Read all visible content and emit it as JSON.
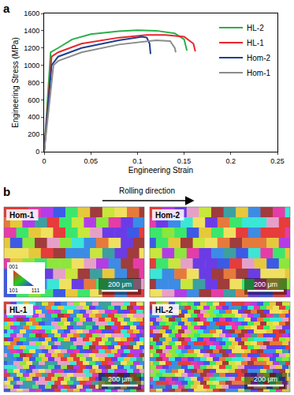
{
  "chart_data": {
    "type": "line",
    "xlabel": "Engineering Strain",
    "ylabel": "Engineering Stress (MPa)",
    "xlim": [
      0,
      0.25
    ],
    "xticks": [
      0,
      0.05,
      0.1,
      0.15,
      0.2,
      0.25
    ],
    "ylim": [
      0,
      1600
    ],
    "yticks": [
      0,
      200,
      400,
      600,
      800,
      1000,
      1200,
      1400,
      1600
    ],
    "grid": false,
    "legend": "upper right",
    "series": [
      {
        "name": "HL-2",
        "color": "#2ab04a",
        "x": [
          0,
          0.007,
          0.015,
          0.03,
          0.05,
          0.08,
          0.1,
          0.12,
          0.14,
          0.15,
          0.153
        ],
        "values": [
          0,
          1150,
          1200,
          1300,
          1360,
          1395,
          1405,
          1400,
          1370,
          1300,
          1170
        ]
      },
      {
        "name": "HL-1",
        "color": "#e8262b",
        "x": [
          0,
          0.008,
          0.015,
          0.04,
          0.08,
          0.11,
          0.13,
          0.15,
          0.16,
          0.162
        ],
        "values": [
          0,
          1100,
          1150,
          1250,
          1320,
          1350,
          1350,
          1330,
          1250,
          1160
        ]
      },
      {
        "name": "Hom-2",
        "color": "#1f3f8f",
        "x": [
          0,
          0.008,
          0.015,
          0.04,
          0.08,
          0.105,
          0.11,
          0.113,
          0.114
        ],
        "values": [
          0,
          1000,
          1100,
          1200,
          1290,
          1330,
          1320,
          1250,
          1130
        ]
      },
      {
        "name": "Hom-1",
        "color": "#8c8c8c",
        "x": [
          0,
          0.01,
          0.015,
          0.04,
          0.08,
          0.12,
          0.135,
          0.14,
          0.141
        ],
        "values": [
          0,
          1000,
          1050,
          1150,
          1240,
          1290,
          1280,
          1200,
          1150
        ]
      }
    ]
  },
  "figure": {
    "panel_letters": [
      "a",
      "b"
    ],
    "arrow_label": "Rolling direction",
    "ipf_key": [
      "001",
      "101",
      "111"
    ],
    "maps": [
      {
        "label": "Hom-1",
        "scale_bar": "200 μm"
      },
      {
        "label": "Hom-2",
        "scale_bar": "200 μm"
      },
      {
        "label": "HL-1",
        "scale_bar": "200 μm"
      },
      {
        "label": "HL-2",
        "scale_bar": "200 μm"
      }
    ]
  }
}
